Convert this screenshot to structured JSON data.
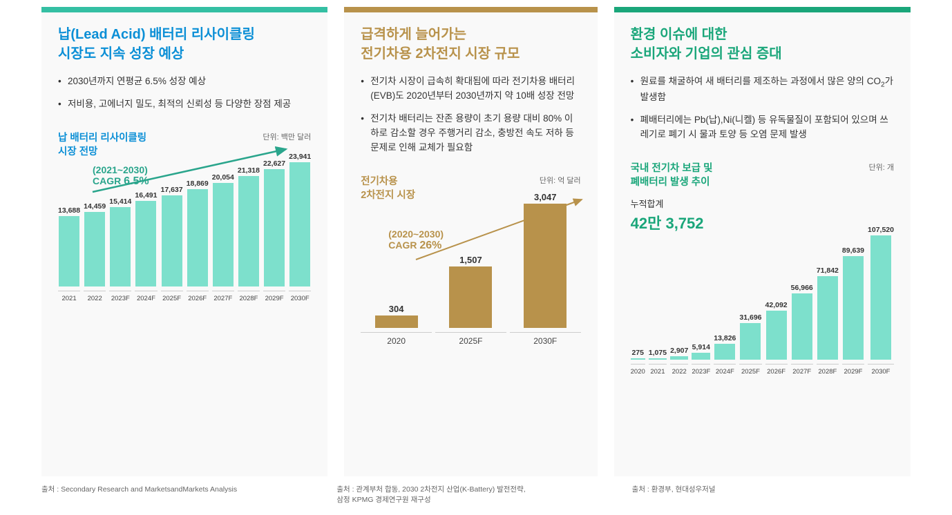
{
  "panels": [
    {
      "accent": "#34bfa3",
      "title_color": "#0b8fd6",
      "title": "납(Lead Acid) 배터리 리사이클링\n시장도 지속 성장 예상",
      "bullets": [
        "2030년까지 연평균 6.5% 성장 예상",
        "저비용, 고에너지 밀도, 최적의 신뢰성 등 다양한 장점 제공"
      ],
      "chart": {
        "title": "납 배터리 리사이클링\n시장 전망",
        "title_color": "#0b8fd6",
        "unit": "단위: 백만 달러",
        "cagr_text1": "(2021~2030)",
        "cagr_text2": "CAGR ",
        "cagr_value": "6.5%",
        "cagr_color": "#2aa58c",
        "bar_color": "#7de0cc",
        "arrow_color": "#2aa58c",
        "ymax": 23941,
        "bars": [
          {
            "x": "2021",
            "v": 13688,
            "label": "13,688"
          },
          {
            "x": "2022",
            "v": 14459,
            "label": "14,459"
          },
          {
            "x": "2023F",
            "v": 15414,
            "label": "15,414"
          },
          {
            "x": "2024F",
            "v": 16491,
            "label": "16,491"
          },
          {
            "x": "2025F",
            "v": 17637,
            "label": "17,637"
          },
          {
            "x": "2026F",
            "v": 18869,
            "label": "18,869"
          },
          {
            "x": "2027F",
            "v": 20054,
            "label": "20,054"
          },
          {
            "x": "2028F",
            "v": 21318,
            "label": "21,318"
          },
          {
            "x": "2029F",
            "v": 22627,
            "label": "22,627"
          },
          {
            "x": "2030F",
            "v": 23941,
            "label": "23,941"
          }
        ]
      },
      "source": "출처 : Secondary Research and MarketsandMarkets Analysis"
    },
    {
      "accent": "#b8924b",
      "title_color": "#b8924b",
      "title": "급격하게 늘어가는\n전기차용 2차전지 시장 규모",
      "bullets": [
        "전기차 시장이 급속히 확대됨에 따라 전기차용 배터리(EVB)도 2020년부터 2030년까지 약 10배 성장 전망",
        "전기차 배터리는 잔존 용량이 초기 용량 대비 80% 이하로 감소할 경우 주행거리 감소, 충방전 속도 저하 등 문제로 인해 교체가 필요함"
      ],
      "chart": {
        "title": "전기차용\n2차전지 시장",
        "title_color": "#b8924b",
        "unit": "단위: 억 달러",
        "cagr_text1": "(2020~2030)",
        "cagr_text2": "CAGR ",
        "cagr_value": "26%",
        "cagr_color": "#b8924b",
        "bar_color": "#b8924b",
        "arrow_color": "#b8924b",
        "ymax": 3047,
        "wide": true,
        "bars": [
          {
            "x": "2020",
            "v": 304,
            "label": "304"
          },
          {
            "x": "2025F",
            "v": 1507,
            "label": "1,507"
          },
          {
            "x": "2030F",
            "v": 3047,
            "label": "3,047"
          }
        ]
      },
      "source": "출처 : 관계부처 합동, 2030 2차전지 산업(K-Battery) 발전전략,\n삼정 KPMG 경제연구원 재구성"
    },
    {
      "accent": "#1aa67a",
      "title_color": "#1aa67a",
      "title": "환경 이슈에 대한\n소비자와 기업의 관심 증대",
      "bullets": [
        "원료를 채굴하여 새 배터리를 제조하는 과정에서 많은 양의 CO₂가 발생함",
        "폐배터리에는 Pb(납),Ni(니켈) 등 유독물질이 포함되어 있으며 쓰레기로 폐기 시 물과 토양 등 오염 문제 발생"
      ],
      "chart": {
        "title": "국내 전기차 보급 및\n폐배터리 발생 추이",
        "title_color": "#1aa67a",
        "unit": "단위: 개",
        "cumulative_label": "누적합계",
        "cumulative_value": "42만 3,752",
        "cumulative_color": "#1aa67a",
        "bar_color": "#7de0cc",
        "ymax": 107520,
        "bars": [
          {
            "x": "2020",
            "v": 275,
            "label": "275"
          },
          {
            "x": "2021",
            "v": 1075,
            "label": "1,075"
          },
          {
            "x": "2022",
            "v": 2907,
            "label": "2,907"
          },
          {
            "x": "2023F",
            "v": 5914,
            "label": "5,914"
          },
          {
            "x": "2024F",
            "v": 13826,
            "label": "13,826"
          },
          {
            "x": "2025F",
            "v": 31696,
            "label": "31,696"
          },
          {
            "x": "2026F",
            "v": 42092,
            "label": "42,092"
          },
          {
            "x": "2027F",
            "v": 56966,
            "label": "56,966"
          },
          {
            "x": "2028F",
            "v": 71842,
            "label": "71,842"
          },
          {
            "x": "2029F",
            "v": 89639,
            "label": "89,639"
          },
          {
            "x": "2030F",
            "v": 107520,
            "label": "107,520"
          }
        ]
      },
      "source": "출처 : 환경부, 현대성우저널"
    }
  ]
}
